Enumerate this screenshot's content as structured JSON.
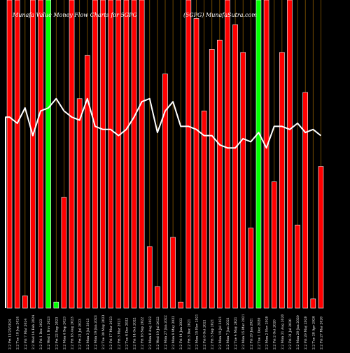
{
  "header": {
    "left": "Munafa Value Money Flow  Charts for 5GPG",
    "right": "(5GPG) MunafaSutra.com"
  },
  "colors": {
    "background": "#000000",
    "up": "#ff0000",
    "down": "#00ff00",
    "gridline": "#8a5a00",
    "line": "#ffffff",
    "bar_stroke": "#ffffff",
    "text": "#ffffff"
  },
  "chart_data": {
    "type": "bar",
    "title": "Munafa Value Money Flow  Charts for 5GPG",
    "categories": [
      "2.2 Fri 11/25/2024",
      "2.2 Tue 18 Jun 2024",
      "2.2 Fri 7 Mar 2024",
      "2.2 Wed 14 Feb 2024",
      "2.2 Fri 1 Dec 2023",
      "2.2 Wed 1 Nov 2023",
      "2.2 Fri 22 Sep 2023",
      "2.2 Mon 4 Sep 2023",
      "2.2 Fri 18 Aug 2023",
      "2.2 Fri 21 Jul 2023",
      "2.2 Mon 3 Jul 2023",
      "2.2 Mon 19 Jun 2023",
      "2.2 Tue 30 May 2023",
      "2.2 Fri 17 Mar 2023",
      "2.2 Fri 3 Mar 2023",
      "2.2 Tue 6 Dec 2022",
      "2.2 Fri 14 Oct 2022",
      "2.2 Fri 16 Sep 2022",
      "2.2 Mon 8 Aug 2022",
      "2.2 Wed 19 Jul 2022",
      "2.2 Mon 27 Jun 2022",
      "2.2 Mon 9 May 2022",
      "2.2 Fri 14 Jan 2022",
      "2.2 Fri 3 Dec 2021",
      "2.2 Mon 15 Nov 2021",
      "2.2 Fri 8 Oct 2021",
      "2.2 Fri 3 Sep 2021",
      "2.2 Mon 19 Jul 2021",
      "2.2 Mon 7 Jun 2021",
      "2.2 Tue 4 May 2021",
      "2.2 Mon 15 Mar 2021",
      "2.2 Fri 29 Jan 2021",
      "2.2 Tue 1 Dec 2020",
      "2.2 Mon 2 Nov 2020",
      "2.2 Fri 2 Oct 2020",
      "2.2 Mon 31 Aug 2020",
      "2.2 Fri 31 Jul 2020",
      "2.2 Mon 29 Jun 2020",
      "2.2 Fri 29 May 2020",
      "2.2 Tue 28 Apr 2020",
      "2.2 Fri 27 Mar 2020"
    ],
    "bar_direction": [
      "up",
      "up",
      "up",
      "up",
      "up",
      "down",
      "down",
      "up",
      "up",
      "up",
      "up",
      "up",
      "up",
      "up",
      "up",
      "up",
      "up",
      "up",
      "up",
      "up",
      "up",
      "up",
      "up",
      "up",
      "up",
      "up",
      "up",
      "up",
      "up",
      "up",
      "up",
      "up",
      "down",
      "up",
      "up",
      "up",
      "up",
      "up",
      "up",
      "up",
      "up"
    ],
    "bar_values": [
      100,
      100,
      4,
      100,
      100,
      100,
      2,
      36,
      100,
      68,
      82,
      100,
      100,
      100,
      100,
      100,
      100,
      100,
      20,
      7,
      76,
      23,
      2,
      100,
      94,
      64,
      84,
      87,
      100,
      92,
      83,
      26,
      100,
      100,
      41,
      83,
      100,
      27,
      70,
      3,
      46
    ],
    "line_values": [
      62,
      60,
      65,
      56,
      64,
      65,
      68,
      64,
      62,
      61,
      68,
      59,
      58,
      58,
      56,
      58,
      62,
      67,
      68,
      57,
      64,
      67,
      59,
      59,
      58,
      56,
      56,
      53,
      52,
      52,
      55,
      54,
      57,
      52,
      59,
      59,
      58,
      60,
      57,
      58,
      56
    ],
    "ylim": [
      0,
      100
    ],
    "xlabel": "",
    "ylabel": "",
    "grid": "vertical",
    "legend": "none"
  }
}
